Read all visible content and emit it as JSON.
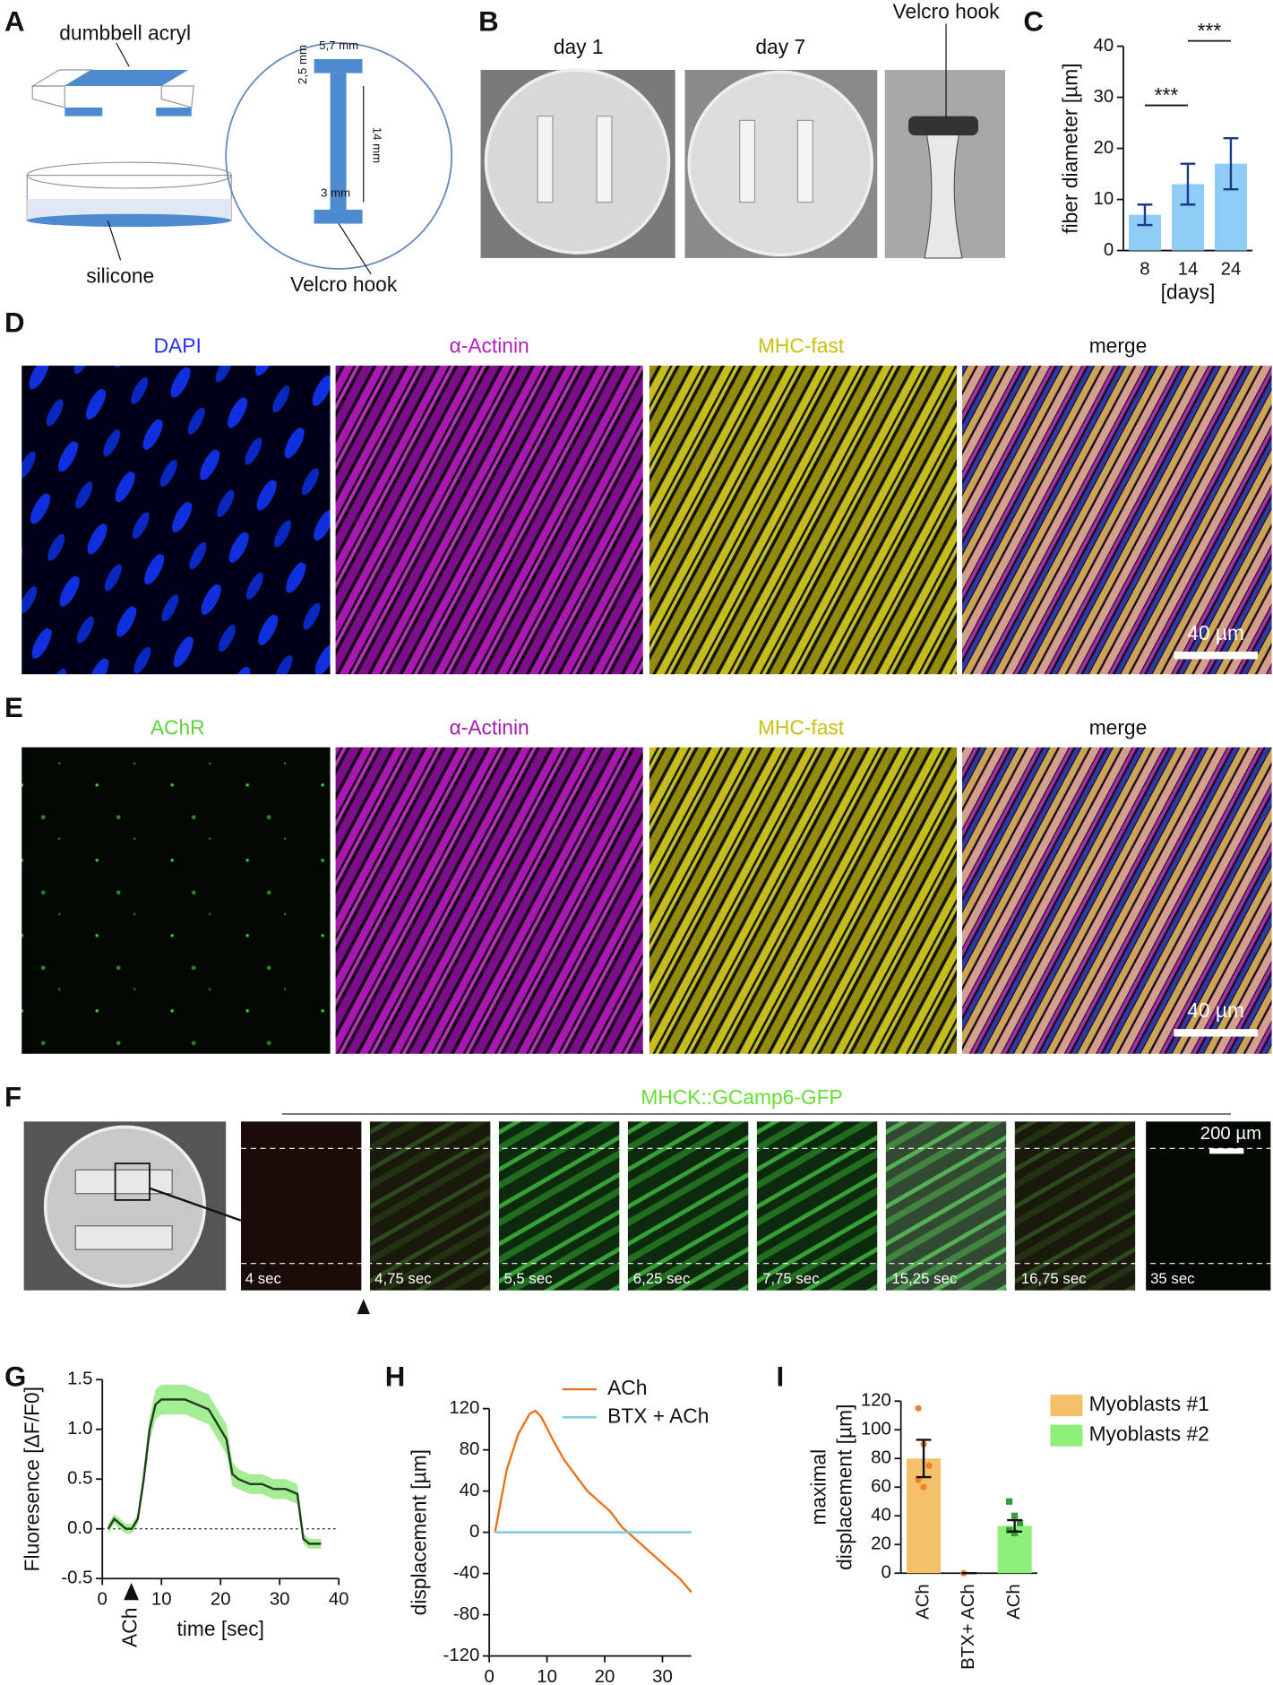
{
  "panel_labels": [
    "A",
    "B",
    "C",
    "D",
    "E",
    "F",
    "G",
    "H",
    "I"
  ],
  "panel_a": {
    "acryl": "dumbbell acryl",
    "silicone": "silicone",
    "width": "5,7 mm",
    "end": "2,5 mm",
    "length": "14 mm",
    "neck": "3 mm",
    "hook": "Velcro hook"
  },
  "panel_b": {
    "days": [
      "day 1",
      "day 7"
    ],
    "hook": "Velcro hook"
  },
  "panel_d": {
    "titles": [
      "DAPI",
      "α-Actinin",
      "MHC-fast",
      "merge"
    ],
    "scale": "40 µm"
  },
  "panel_e": {
    "titles": [
      "AChR",
      "α-Actinin",
      "MHC-fast",
      "merge"
    ],
    "scale": "40 µm"
  },
  "panel_f": {
    "title": "MHCK::GCamp6-GFP",
    "scale": "200 µm",
    "times": [
      "4 sec",
      "4,75 sec",
      "5,5 sec",
      "6,25 sec",
      "7,75 sec",
      "15,25 sec",
      "16,75 sec",
      "35 sec"
    ]
  },
  "chart_data": [
    {
      "type": "bar",
      "y_label": "fiber diameter [µm]",
      "x_label": "[days]",
      "categories": [
        "8",
        "14",
        "24"
      ],
      "values": [
        7,
        13,
        17
      ],
      "errors": [
        2,
        4,
        5
      ],
      "color": "#8ecbf5",
      "error_color": "#1a3a8a",
      "ylim": [
        0,
        40
      ],
      "yticks": [
        0,
        10,
        20,
        30,
        40
      ],
      "annotations": [
        "***",
        "***"
      ]
    },
    {
      "type": "line",
      "y_label": "Fluoresence [ΔF/F0]",
      "x_label": "time [sec]",
      "annotation": "ACh",
      "x": [
        1,
        2,
        3,
        4,
        5,
        6,
        7,
        8,
        9,
        10,
        12,
        14,
        16,
        18,
        19,
        20,
        21,
        22,
        23,
        25,
        27,
        29,
        31,
        33,
        34,
        35,
        36,
        37
      ],
      "values": [
        0,
        0.1,
        0.05,
        0,
        0,
        0.1,
        0.5,
        1.0,
        1.25,
        1.3,
        1.3,
        1.3,
        1.25,
        1.2,
        1.1,
        1.0,
        0.9,
        0.55,
        0.5,
        0.45,
        0.45,
        0.4,
        0.4,
        0.35,
        -0.1,
        -0.15,
        -0.15,
        -0.15
      ],
      "errors": [
        0.05,
        0.05,
        0.05,
        0.05,
        0.05,
        0.05,
        0.1,
        0.12,
        0.15,
        0.15,
        0.15,
        0.15,
        0.15,
        0.15,
        0.15,
        0.15,
        0.15,
        0.12,
        0.1,
        0.1,
        0.1,
        0.1,
        0.1,
        0.1,
        0.05,
        0.05,
        0.05,
        0.05
      ],
      "color": "#1f3f1f",
      "band_color": "#8ee87a",
      "hline": 0,
      "xlim": [
        0,
        40
      ],
      "xticks": [
        0,
        10,
        20,
        30,
        40
      ],
      "ylim": [
        -0.5,
        1.5
      ],
      "yticks": [
        -0.5,
        {
          "value": 0,
          "label": "0.0"
        },
        0.5,
        {
          "value": 1,
          "label": "1.0"
        },
        1.5
      ]
    },
    {
      "type": "line",
      "y_label": "displacement [µm]",
      "x_label": "time [sec]",
      "x": [
        1,
        3,
        5,
        7,
        8,
        9,
        11,
        13,
        15,
        17,
        19,
        21,
        23,
        25,
        27,
        29,
        31,
        33,
        35
      ],
      "series": [
        {
          "name": "ACh",
          "color": "#e8741e",
          "values": [
            0,
            60,
            95,
            115,
            118,
            112,
            90,
            70,
            55,
            40,
            30,
            20,
            5,
            -5,
            -15,
            -25,
            -35,
            -45,
            -58
          ]
        },
        {
          "name": "BTX + ACh",
          "color": "#7ec8e8",
          "values": [
            0,
            0,
            0,
            0,
            0,
            0,
            0,
            0,
            0,
            0,
            0,
            0,
            0,
            0,
            0,
            0,
            0,
            0,
            0
          ]
        }
      ],
      "xlim": [
        0,
        35
      ],
      "xticks": [
        0,
        10,
        20,
        30
      ],
      "ylim": [
        -120,
        120
      ],
      "yticks": [
        -120,
        -80,
        -40,
        0,
        40,
        80,
        120
      ],
      "legend": "top-right"
    },
    {
      "type": "bar",
      "y_label": [
        "maximal",
        "displacement [µm]"
      ],
      "categories": [
        "ACh",
        "BTX+ ACh",
        "ACh"
      ],
      "series": [
        {
          "name": "Myoblasts #1",
          "color": "#f5c06a",
          "point_color": "#f08030",
          "values": [
            80,
            0,
            null
          ],
          "errors": [
            13,
            0,
            null
          ],
          "points": [
            [
              115,
              90,
              75,
              65,
              60
            ],
            [
              0
            ],
            []
          ]
        },
        {
          "name": "Myoblasts #2",
          "color": "#8ef07a",
          "point_color": "#3a9a3a",
          "values": [
            null,
            null,
            33
          ],
          "errors": [
            null,
            null,
            4
          ],
          "points": [
            [],
            [],
            [
              50,
              40,
              35,
              30,
              28
            ]
          ]
        }
      ],
      "error_color": "#111",
      "ylim": [
        0,
        120
      ],
      "yticks": [
        0,
        20,
        40,
        60,
        80,
        100,
        120
      ],
      "legend": "right"
    }
  ]
}
